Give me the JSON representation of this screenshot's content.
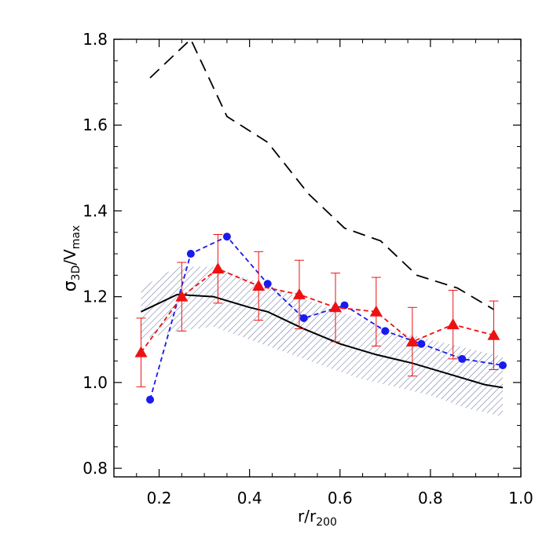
{
  "chart_data": {
    "type": "line",
    "xlabel": {
      "main": "r/r",
      "sub": "200"
    },
    "ylabel": {
      "sym": "σ",
      "sub1": "3D",
      "mid": "/V",
      "sub2": "max"
    },
    "xlim": [
      0.1,
      1.0
    ],
    "ylim": [
      0.78,
      1.8
    ],
    "x_ticks": [
      0.2,
      0.4,
      0.6,
      0.8,
      1.0
    ],
    "x_tick_labels": [
      "0.2",
      "0.4",
      "0.6",
      "0.8",
      "1.0"
    ],
    "y_ticks": [
      0.8,
      1.0,
      1.2,
      1.4,
      1.6,
      1.8
    ],
    "y_tick_labels": [
      "0.8",
      "1.0",
      "1.2",
      "1.4",
      "1.6",
      "1.8"
    ],
    "grid": false,
    "legend": "none",
    "band": {
      "color": "#4b5a8c",
      "x": [
        0.16,
        0.24,
        0.32,
        0.4,
        0.48,
        0.56,
        0.64,
        0.72,
        0.8,
        0.88,
        0.96
      ],
      "y_low": [
        1.1,
        1.12,
        1.13,
        1.1,
        1.07,
        1.04,
        1.01,
        0.99,
        0.97,
        0.94,
        0.92
      ],
      "y_high": [
        1.22,
        1.27,
        1.27,
        1.24,
        1.21,
        1.18,
        1.15,
        1.12,
        1.1,
        1.08,
        1.06
      ]
    },
    "series": [
      {
        "style": "solid",
        "color": "#000000",
        "x": [
          0.16,
          0.24,
          0.32,
          0.4,
          0.44,
          0.52,
          0.6,
          0.68,
          0.76,
          0.84,
          0.92,
          0.96
        ],
        "y": [
          1.165,
          1.205,
          1.2,
          1.175,
          1.165,
          1.125,
          1.09,
          1.065,
          1.045,
          1.02,
          0.995,
          0.988
        ]
      },
      {
        "style": "long-dash",
        "color": "#000000",
        "x": [
          0.18,
          0.25,
          0.27,
          0.35,
          0.44,
          0.53,
          0.61,
          0.69,
          0.77,
          0.86,
          0.94
        ],
        "y": [
          1.71,
          1.78,
          1.8,
          1.62,
          1.56,
          1.44,
          1.36,
          1.33,
          1.25,
          1.22,
          1.17
        ]
      },
      {
        "style": "dashed",
        "marker": "circle",
        "color": "#1a1aee",
        "x": [
          0.18,
          0.27,
          0.35,
          0.44,
          0.52,
          0.61,
          0.7,
          0.78,
          0.87,
          0.96
        ],
        "y": [
          0.96,
          1.3,
          1.34,
          1.23,
          1.15,
          1.18,
          1.12,
          1.09,
          1.055,
          1.04
        ]
      },
      {
        "style": "dashed",
        "marker": "triangle",
        "color": "#ee1111",
        "x": [
          0.16,
          0.25,
          0.33,
          0.42,
          0.51,
          0.59,
          0.68,
          0.76,
          0.85,
          0.94
        ],
        "y": [
          1.07,
          1.2,
          1.265,
          1.225,
          1.205,
          1.175,
          1.165,
          1.095,
          1.135,
          1.11
        ],
        "yerr": [
          0.08,
          0.08,
          0.08,
          0.08,
          0.08,
          0.08,
          0.08,
          0.08,
          0.08,
          0.08
        ]
      }
    ]
  }
}
